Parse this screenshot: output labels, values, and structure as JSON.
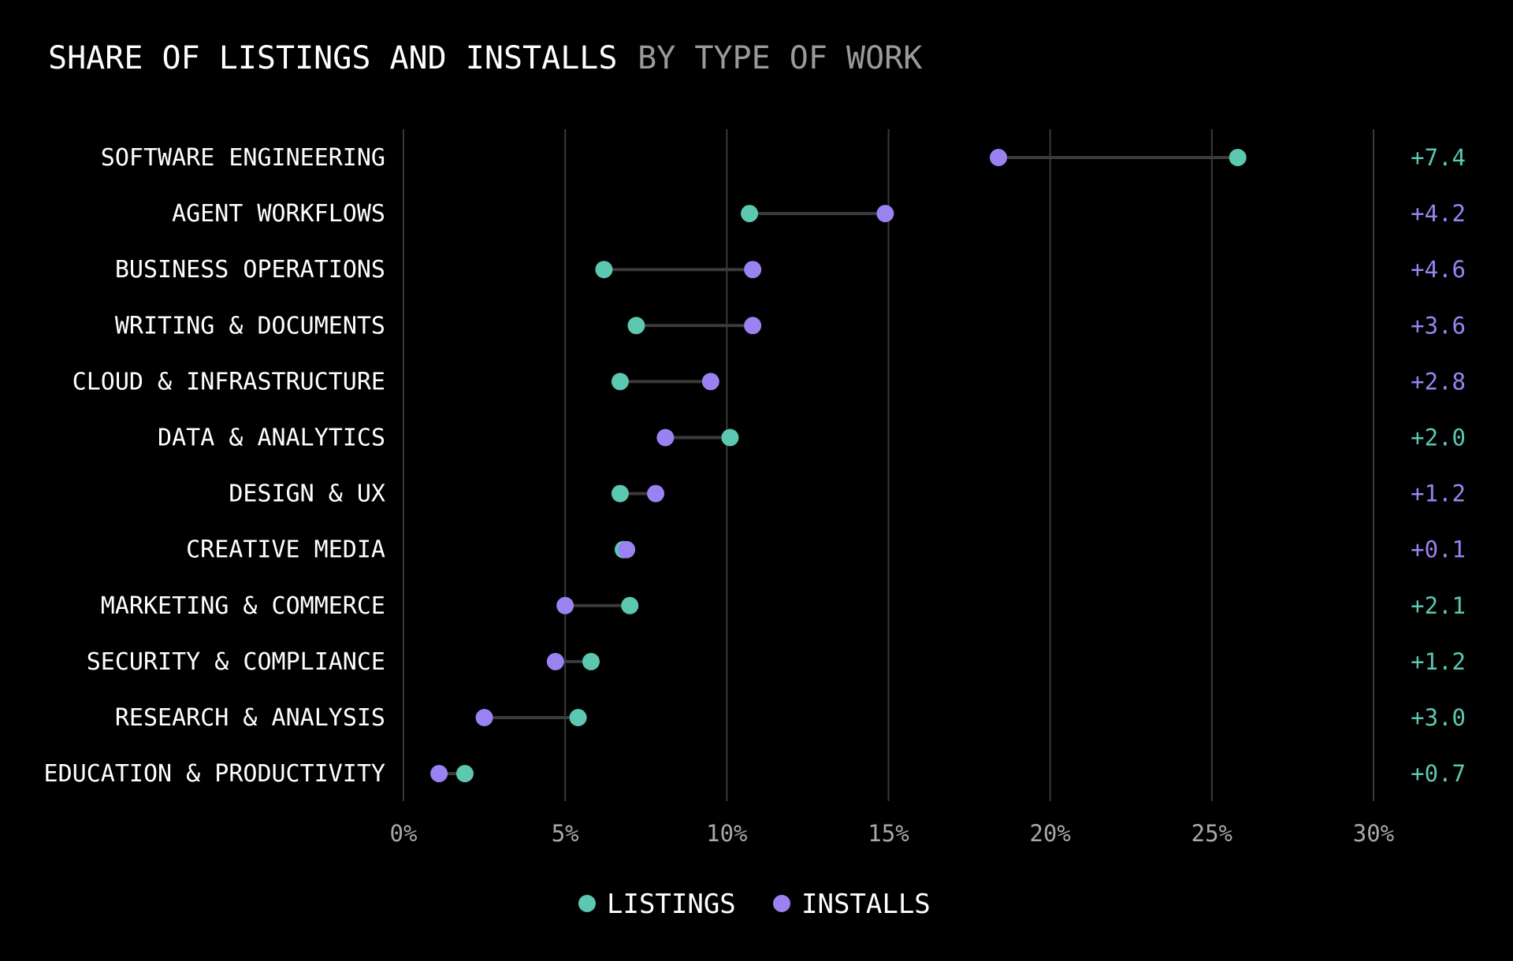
{
  "colors": {
    "listings": "#5cc8b2",
    "installs": "#9b82f2",
    "background": "#000000"
  },
  "chart_data": {
    "type": "dumbbell",
    "title": "SHARE OF LISTINGS AND INSTALLS",
    "subtitle": "BY TYPE OF WORK",
    "xlim": [
      0,
      30
    ],
    "x_ticks": [
      0,
      5,
      10,
      15,
      20,
      25,
      30
    ],
    "x_tick_labels": [
      "0%",
      "5%",
      "10%",
      "15%",
      "20%",
      "25%",
      "30%"
    ],
    "grid": true,
    "legend_position": "bottom-center",
    "series": [
      {
        "name": "LISTINGS",
        "key": "listings"
      },
      {
        "name": "INSTALLS",
        "key": "installs"
      }
    ],
    "categories": [
      {
        "label": "SOFTWARE ENGINEERING",
        "listings": 25.8,
        "installs": 18.4,
        "delta": "+7.4",
        "leader": "listings"
      },
      {
        "label": "AGENT WORKFLOWS",
        "listings": 10.7,
        "installs": 14.9,
        "delta": "+4.2",
        "leader": "installs"
      },
      {
        "label": "BUSINESS OPERATIONS",
        "listings": 6.2,
        "installs": 10.8,
        "delta": "+4.6",
        "leader": "installs"
      },
      {
        "label": "WRITING & DOCUMENTS",
        "listings": 7.2,
        "installs": 10.8,
        "delta": "+3.6",
        "leader": "installs"
      },
      {
        "label": "CLOUD & INFRASTRUCTURE",
        "listings": 6.7,
        "installs": 9.5,
        "delta": "+2.8",
        "leader": "installs"
      },
      {
        "label": "DATA & ANALYTICS",
        "listings": 10.1,
        "installs": 8.1,
        "delta": "+2.0",
        "leader": "listings"
      },
      {
        "label": "DESIGN & UX",
        "listings": 6.7,
        "installs": 7.8,
        "delta": "+1.2",
        "leader": "installs"
      },
      {
        "label": "CREATIVE MEDIA",
        "listings": 6.8,
        "installs": 6.9,
        "delta": "+0.1",
        "leader": "installs"
      },
      {
        "label": "MARKETING & COMMERCE",
        "listings": 7.0,
        "installs": 5.0,
        "delta": "+2.1",
        "leader": "listings"
      },
      {
        "label": "SECURITY & COMPLIANCE",
        "listings": 5.8,
        "installs": 4.7,
        "delta": "+1.2",
        "leader": "listings"
      },
      {
        "label": "RESEARCH & ANALYSIS",
        "listings": 5.4,
        "installs": 2.5,
        "delta": "+3.0",
        "leader": "listings"
      },
      {
        "label": "EDUCATION & PRODUCTIVITY",
        "listings": 1.9,
        "installs": 1.1,
        "delta": "+0.7",
        "leader": "listings"
      }
    ]
  }
}
